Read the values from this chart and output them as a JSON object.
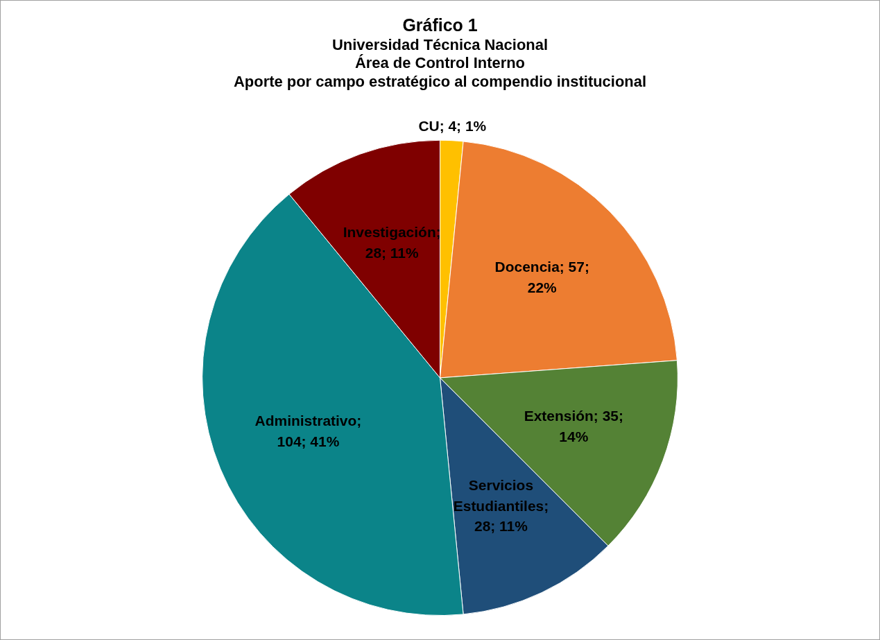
{
  "chart_data": {
    "type": "pie",
    "title": "Gráfico 1",
    "subtitle": "Universidad Técnica Nacional\nÁrea de Control Interno\nAporte por campo estratégico al compendio institucional",
    "categories": [
      "CU",
      "Docencia",
      "Extensión",
      "Servicios Estudiantiles",
      "Administrativo",
      "Investigación"
    ],
    "values": [
      4,
      57,
      35,
      28,
      104,
      28
    ],
    "colors": [
      "#ffc000",
      "#ed7d31",
      "#548235",
      "#1f4e79",
      "#0b8489",
      "#7f0000"
    ],
    "value_labels": [
      "; 4; 1%",
      "; 57; 22%",
      "; 35; 14%",
      "; 28; 11%",
      "; 104; 41%",
      "; 28; 11%"
    ],
    "legend": false
  }
}
